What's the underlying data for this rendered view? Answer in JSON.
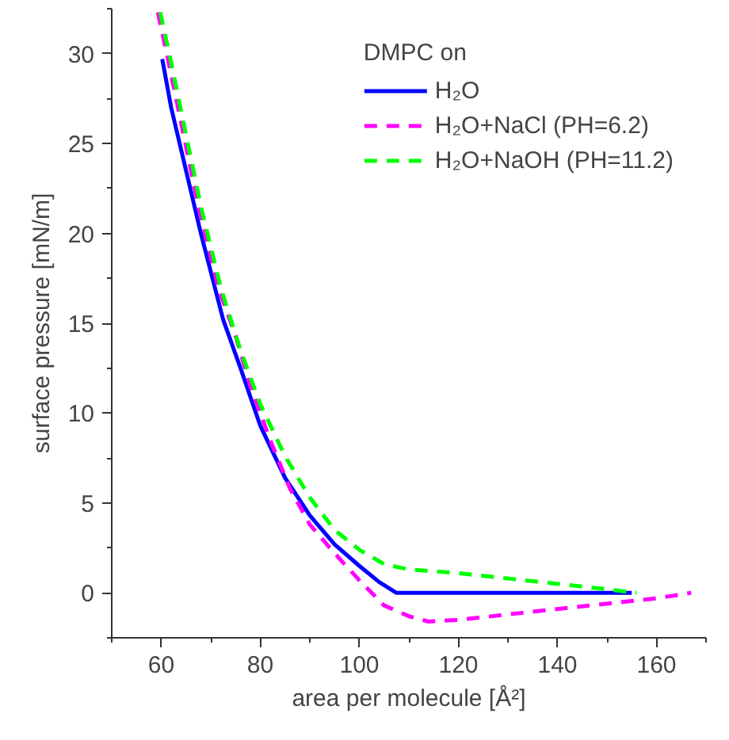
{
  "chart_data": {
    "type": "line",
    "xlabel": "area per molecule [Å²]",
    "ylabel": "surface pressure [mN/m]",
    "legend_title": "DMPC on",
    "legend": "top right",
    "grid": false,
    "xlim": [
      50,
      170
    ],
    "xticks": [
      60,
      80,
      100,
      120,
      140,
      160
    ],
    "ylim": [
      -2.5,
      32.5
    ],
    "yticks": [
      0,
      5,
      10,
      15,
      20,
      25,
      30
    ],
    "series": [
      {
        "name": "H₂O",
        "color": "#0000ff",
        "line_style": "solid",
        "x": [
          60.2,
          62,
          65,
          68,
          72.5,
          76,
          80,
          85,
          90,
          95,
          100,
          104,
          107.5,
          110,
          130,
          155
        ],
        "values": [
          29.7,
          27,
          23.5,
          20,
          15.2,
          12.5,
          9.3,
          6.4,
          4.3,
          2.7,
          1.5,
          0.6,
          0,
          0,
          0,
          0
        ]
      },
      {
        "name": "H₂O+NaCl (PH=6.2)",
        "color": "#ff00ff",
        "line_style": "dashed",
        "x": [
          59.3,
          61.5,
          64.5,
          67.5,
          71.5,
          75,
          78,
          82,
          86,
          90,
          95,
          100,
          105,
          110,
          114,
          120,
          130,
          140,
          150,
          160,
          167
        ],
        "values": [
          32.3,
          29.5,
          25.5,
          21.5,
          17,
          14.3,
          11.5,
          8.5,
          5.8,
          3.8,
          2.2,
          0.7,
          -0.7,
          -1.3,
          -1.6,
          -1.5,
          -1.2,
          -0.9,
          -0.6,
          -0.3,
          0
        ]
      },
      {
        "name": "H₂O+NaOH (PH=11.2)",
        "color": "#00ff00",
        "line_style": "dashed",
        "x": [
          59.8,
          62,
          65,
          68,
          72,
          76,
          80,
          85,
          90,
          95,
          100,
          105,
          110,
          120,
          130,
          140,
          150,
          156
        ],
        "values": [
          32.3,
          29.5,
          25.5,
          21.5,
          17,
          13.5,
          10.5,
          7.6,
          5.3,
          3.5,
          2.4,
          1.6,
          1.3,
          1.1,
          0.8,
          0.5,
          0.2,
          0
        ]
      }
    ]
  }
}
